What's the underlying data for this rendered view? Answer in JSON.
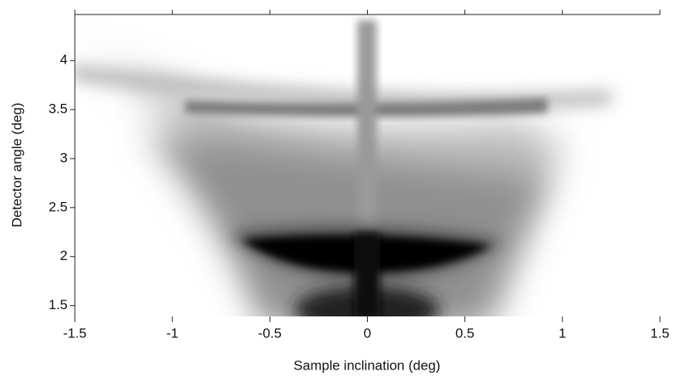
{
  "chart_data": {
    "type": "intensity-map",
    "xlabel": "Sample inclination (deg)",
    "ylabel": "Detector angle (deg)",
    "xlim": [
      -1.5,
      1.5
    ],
    "xticks": [
      {
        "value": -1.5,
        "label": "-1.5"
      },
      -1,
      {
        "value": -0.5,
        "label": "-0.5"
      },
      0,
      0.5,
      1,
      1.5
    ],
    "ylim": [
      1.39,
      4.47
    ],
    "yticks": [
      1.5,
      2,
      2.5,
      3,
      3.5,
      4
    ],
    "colormap": "gray-inverted"
  }
}
